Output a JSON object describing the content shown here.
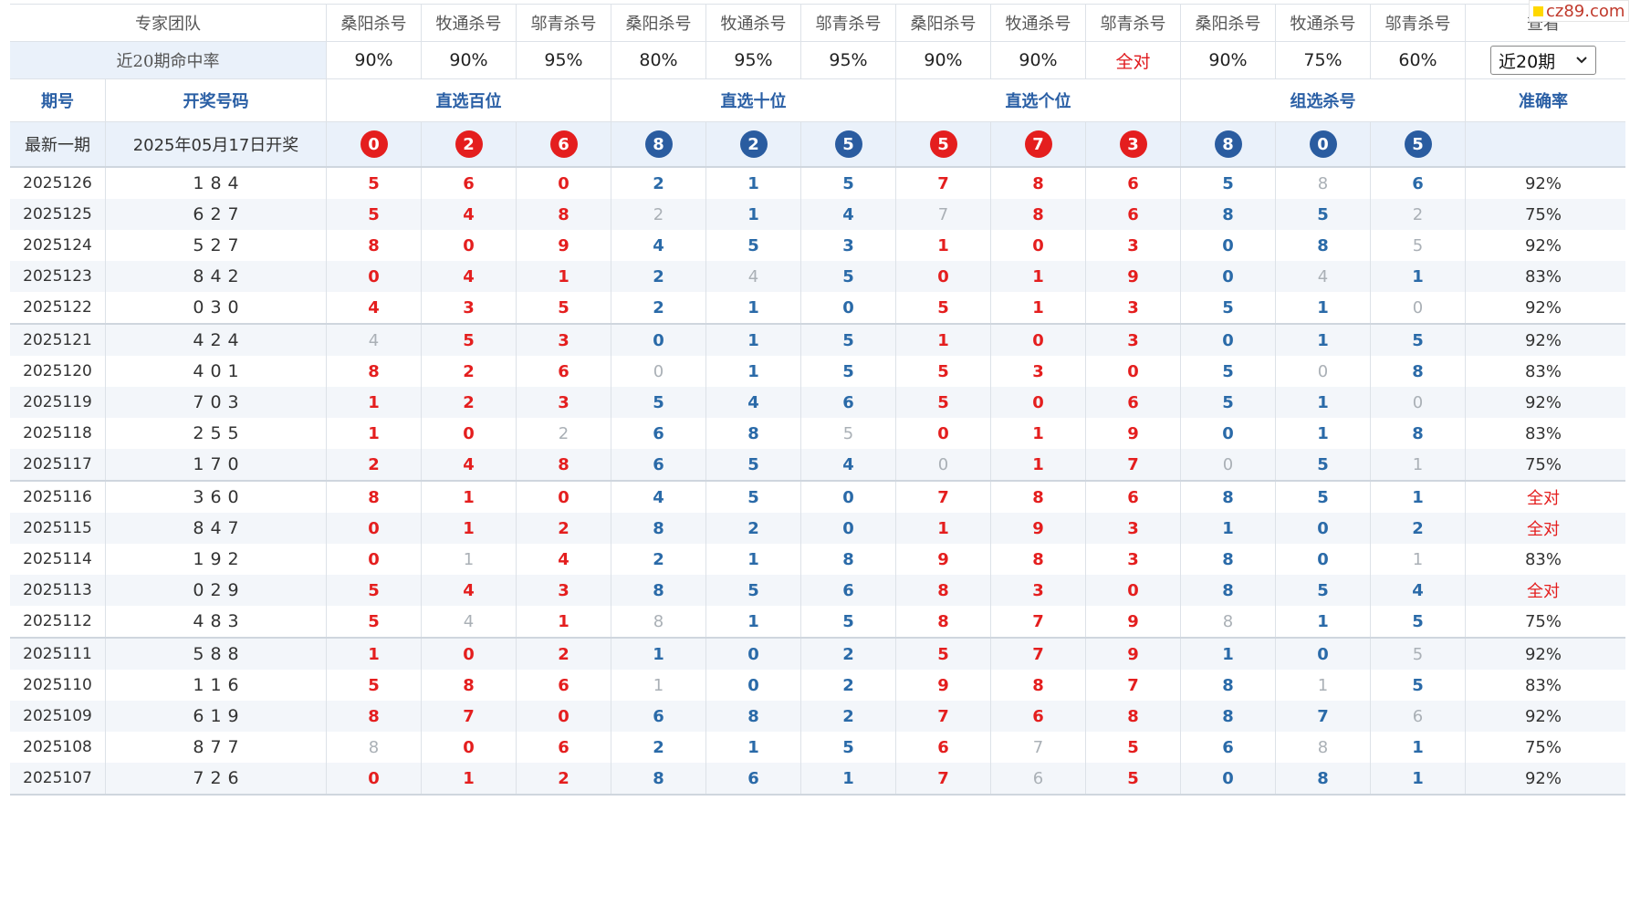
{
  "brand": "cz89.com",
  "header": {
    "team_label": "专家团队",
    "experts": [
      "桑阳杀号",
      "牧通杀号",
      "邬青杀号",
      "桑阳杀号",
      "牧通杀号",
      "邬青杀号",
      "桑阳杀号",
      "牧通杀号",
      "邬青杀号",
      "桑阳杀号",
      "牧通杀号",
      "邬青杀号"
    ],
    "view_label": "查看"
  },
  "hit_rates": {
    "label": "近20期命中率",
    "values": [
      "90%",
      "90%",
      "95%",
      "80%",
      "95%",
      "95%",
      "90%",
      "90%",
      "全对",
      "90%",
      "75%",
      "60%"
    ],
    "period_select": "近20期"
  },
  "columns": {
    "issue": "期号",
    "draw": "开奖号码",
    "groups": [
      "直选百位",
      "直选十位",
      "直选个位",
      "组选杀号"
    ],
    "accuracy": "准确率"
  },
  "latest": {
    "label": "最新一期",
    "date": "2025年05月17日开奖",
    "numbers": [
      "0",
      "2",
      "6",
      "8",
      "2",
      "5",
      "5",
      "7",
      "3",
      "8",
      "0",
      "5"
    ]
  },
  "rows": [
    {
      "issue": "2025126",
      "draw": "184",
      "kills": [
        "5",
        "6",
        "0",
        "2",
        "1",
        "5",
        "7",
        "8",
        "6",
        "5",
        "8",
        "6"
      ],
      "miss": [
        10
      ],
      "accuracy": "92%"
    },
    {
      "issue": "2025125",
      "draw": "627",
      "kills": [
        "5",
        "4",
        "8",
        "2",
        "1",
        "4",
        "7",
        "8",
        "6",
        "8",
        "5",
        "2"
      ],
      "miss": [
        3,
        6,
        11
      ],
      "accuracy": "75%"
    },
    {
      "issue": "2025124",
      "draw": "527",
      "kills": [
        "8",
        "0",
        "9",
        "4",
        "5",
        "3",
        "1",
        "0",
        "3",
        "0",
        "8",
        "5"
      ],
      "miss": [
        11
      ],
      "accuracy": "92%"
    },
    {
      "issue": "2025123",
      "draw": "842",
      "kills": [
        "0",
        "4",
        "1",
        "2",
        "4",
        "5",
        "0",
        "1",
        "9",
        "0",
        "4",
        "1"
      ],
      "miss": [
        4,
        10
      ],
      "accuracy": "83%"
    },
    {
      "issue": "2025122",
      "draw": "030",
      "kills": [
        "4",
        "3",
        "5",
        "2",
        "1",
        "0",
        "5",
        "1",
        "3",
        "5",
        "1",
        "0"
      ],
      "miss": [
        11
      ],
      "accuracy": "92%"
    },
    {
      "issue": "2025121",
      "draw": "424",
      "kills": [
        "4",
        "5",
        "3",
        "0",
        "1",
        "5",
        "1",
        "0",
        "3",
        "0",
        "1",
        "5"
      ],
      "miss": [
        0
      ],
      "accuracy": "92%"
    },
    {
      "issue": "2025120",
      "draw": "401",
      "kills": [
        "8",
        "2",
        "6",
        "0",
        "1",
        "5",
        "5",
        "3",
        "0",
        "5",
        "0",
        "8"
      ],
      "miss": [
        3,
        10
      ],
      "accuracy": "83%"
    },
    {
      "issue": "2025119",
      "draw": "703",
      "kills": [
        "1",
        "2",
        "3",
        "5",
        "4",
        "6",
        "5",
        "0",
        "6",
        "5",
        "1",
        "0"
      ],
      "miss": [
        11
      ],
      "accuracy": "92%"
    },
    {
      "issue": "2025118",
      "draw": "255",
      "kills": [
        "1",
        "0",
        "2",
        "6",
        "8",
        "5",
        "0",
        "1",
        "9",
        "0",
        "1",
        "8"
      ],
      "miss": [
        2,
        5
      ],
      "accuracy": "83%"
    },
    {
      "issue": "2025117",
      "draw": "170",
      "kills": [
        "2",
        "4",
        "8",
        "6",
        "5",
        "4",
        "0",
        "1",
        "7",
        "0",
        "5",
        "1"
      ],
      "miss": [
        6,
        9,
        11
      ],
      "accuracy": "75%"
    },
    {
      "issue": "2025116",
      "draw": "360",
      "kills": [
        "8",
        "1",
        "0",
        "4",
        "5",
        "0",
        "7",
        "8",
        "6",
        "8",
        "5",
        "1"
      ],
      "miss": [],
      "accuracy": "全对"
    },
    {
      "issue": "2025115",
      "draw": "847",
      "kills": [
        "0",
        "1",
        "2",
        "8",
        "2",
        "0",
        "1",
        "9",
        "3",
        "1",
        "0",
        "2"
      ],
      "miss": [],
      "accuracy": "全对"
    },
    {
      "issue": "2025114",
      "draw": "192",
      "kills": [
        "0",
        "1",
        "4",
        "2",
        "1",
        "8",
        "9",
        "8",
        "3",
        "8",
        "0",
        "1"
      ],
      "miss": [
        1,
        11
      ],
      "accuracy": "83%"
    },
    {
      "issue": "2025113",
      "draw": "029",
      "kills": [
        "5",
        "4",
        "3",
        "8",
        "5",
        "6",
        "8",
        "3",
        "0",
        "8",
        "5",
        "4"
      ],
      "miss": [],
      "accuracy": "全对"
    },
    {
      "issue": "2025112",
      "draw": "483",
      "kills": [
        "5",
        "4",
        "1",
        "8",
        "1",
        "5",
        "8",
        "7",
        "9",
        "8",
        "1",
        "5"
      ],
      "miss": [
        1,
        3,
        9
      ],
      "accuracy": "75%"
    },
    {
      "issue": "2025111",
      "draw": "588",
      "kills": [
        "1",
        "0",
        "2",
        "1",
        "0",
        "2",
        "5",
        "7",
        "9",
        "1",
        "0",
        "5"
      ],
      "miss": [
        11
      ],
      "accuracy": "92%"
    },
    {
      "issue": "2025110",
      "draw": "116",
      "kills": [
        "5",
        "8",
        "6",
        "1",
        "0",
        "2",
        "9",
        "8",
        "7",
        "8",
        "1",
        "5"
      ],
      "miss": [
        3,
        10
      ],
      "accuracy": "83%"
    },
    {
      "issue": "2025109",
      "draw": "619",
      "kills": [
        "8",
        "7",
        "0",
        "6",
        "8",
        "2",
        "7",
        "6",
        "8",
        "8",
        "7",
        "6"
      ],
      "miss": [
        11
      ],
      "accuracy": "92%"
    },
    {
      "issue": "2025108",
      "draw": "877",
      "kills": [
        "8",
        "0",
        "6",
        "2",
        "1",
        "5",
        "6",
        "7",
        "5",
        "6",
        "8",
        "1"
      ],
      "miss": [
        0,
        7,
        10
      ],
      "accuracy": "75%"
    },
    {
      "issue": "2025107",
      "draw": "726",
      "kills": [
        "0",
        "1",
        "2",
        "8",
        "6",
        "1",
        "7",
        "6",
        "5",
        "0",
        "8",
        "1"
      ],
      "miss": [
        7
      ],
      "accuracy": "92%"
    }
  ],
  "colors": {
    "red": "#e41e1e",
    "blue": "#2a6aa8",
    "miss": "#aab0b6",
    "header_blue": "#2a5fa5",
    "band": "#eaf1fa"
  }
}
